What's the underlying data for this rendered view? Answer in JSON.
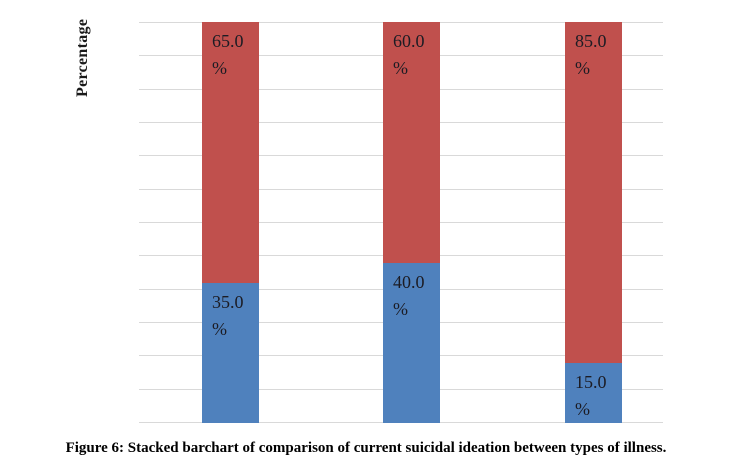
{
  "figure": {
    "caption": "Figure 6: Stacked barchart of comparison of current suicidal ideation between types of illness."
  },
  "chart_data": {
    "type": "bar",
    "subtype": "stacked-100-percent",
    "title": "",
    "xlabel": "",
    "ylabel": "Percentage",
    "ylim": [
      0,
      100
    ],
    "grid": true,
    "gridline_divisions": 12,
    "gridline_color": "#d9d9d9",
    "legend": "none",
    "categories": [
      "",
      "",
      ""
    ],
    "series": [
      {
        "name": "bottom-segment",
        "color": "#4F81BD",
        "values": [
          35.0,
          40.0,
          15.0
        ]
      },
      {
        "name": "top-segment",
        "color": "#C0504D",
        "values": [
          65.0,
          60.0,
          85.0
        ]
      }
    ],
    "data_label_suffix": "%",
    "data_labels": {
      "top_segment": [
        "65.0 %",
        "60.0 %",
        "85.0 %"
      ],
      "bottom_segment": [
        "35.0 %",
        "40.0 %",
        "15.0 %"
      ]
    }
  }
}
